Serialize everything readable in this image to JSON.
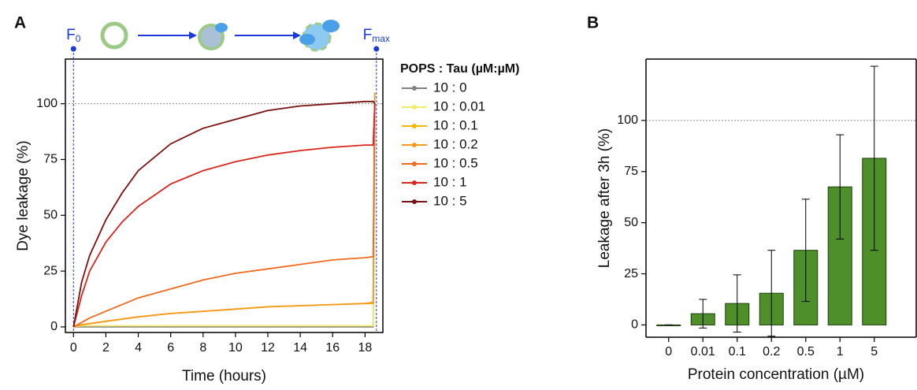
{
  "chart_data": [
    {
      "type": "line",
      "panel_label": "A",
      "xlabel": "Time (hours)",
      "ylabel": "Dye leakage (%)",
      "legend_title": "POPS : Tau (µM:µM)",
      "annotations": [
        {
          "text": "F",
          "subscript": "0",
          "x": 0
        },
        {
          "text": "F",
          "subscript": "max",
          "x": 18.7
        }
      ],
      "reference_line": 100,
      "xlim": [
        -0.5,
        19.1
      ],
      "xticks": [
        0,
        2,
        4,
        6,
        8,
        10,
        12,
        14,
        16,
        18
      ],
      "ylim": [
        -2.5,
        120
      ],
      "yticks": [
        0,
        25,
        50,
        75,
        100
      ],
      "x": [
        0,
        0.5,
        1,
        2,
        3,
        4,
        6,
        8,
        10,
        12,
        14,
        16,
        18,
        18.5,
        18.6
      ],
      "series": [
        {
          "name": "10 : 0",
          "color": "#808080",
          "values": [
            0,
            0,
            0,
            0,
            0,
            0,
            0,
            0,
            0,
            0,
            0,
            0,
            0,
            0,
            100
          ]
        },
        {
          "name": "10 : 0.01",
          "color": "#f2ec6a",
          "values": [
            0,
            0.5,
            0.5,
            0.5,
            0.5,
            0.5,
            0.5,
            0.5,
            0.5,
            0.5,
            0.5,
            0.5,
            0.5,
            0.5,
            100
          ]
        },
        {
          "name": "10 : 0.1",
          "color": "#f5b700",
          "values": [
            0,
            1,
            1.5,
            2.5,
            3.5,
            4.5,
            6,
            7,
            8,
            9,
            9.5,
            10,
            10.5,
            10.5,
            100
          ]
        },
        {
          "name": "10 : 0.2",
          "color": "#f59a1c",
          "values": [
            0,
            1,
            1.5,
            2.5,
            3.5,
            4.5,
            6,
            7,
            8,
            9,
            9.5,
            10,
            10.5,
            11,
            105
          ]
        },
        {
          "name": "10 : 0.5",
          "color": "#f06a1e",
          "values": [
            0,
            2,
            4,
            7,
            10,
            13,
            17,
            21,
            24,
            26,
            28,
            30,
            31,
            31.5,
            100
          ]
        },
        {
          "name": "10 : 1",
          "color": "#d9261c",
          "values": [
            0,
            14,
            25,
            38,
            47,
            54,
            64,
            70,
            74,
            77,
            79,
            80.5,
            81.5,
            81.5,
            100
          ]
        },
        {
          "name": "10 : 5",
          "color": "#7a1010",
          "values": [
            0,
            20,
            32,
            48,
            60,
            70,
            82,
            89,
            93,
            97,
            99,
            100,
            101,
            101,
            100
          ]
        }
      ]
    },
    {
      "type": "bar",
      "panel_label": "B",
      "xlabel": "Protein concentration (µM)",
      "ylabel": "Leakage after 3h (%)",
      "reference_line": 100,
      "color": "#4e8f2a",
      "categories": [
        "0",
        "0.01",
        "0.1",
        "0.2",
        "0.5",
        "1",
        "5"
      ],
      "values": [
        0,
        5.5,
        10.5,
        15.5,
        36.5,
        67.5,
        81.5
      ],
      "errors": [
        0,
        7,
        14,
        21,
        25,
        25.5,
        45
      ],
      "ylim": [
        -6,
        130
      ],
      "yticks": [
        0,
        25,
        50,
        75,
        100
      ]
    }
  ]
}
